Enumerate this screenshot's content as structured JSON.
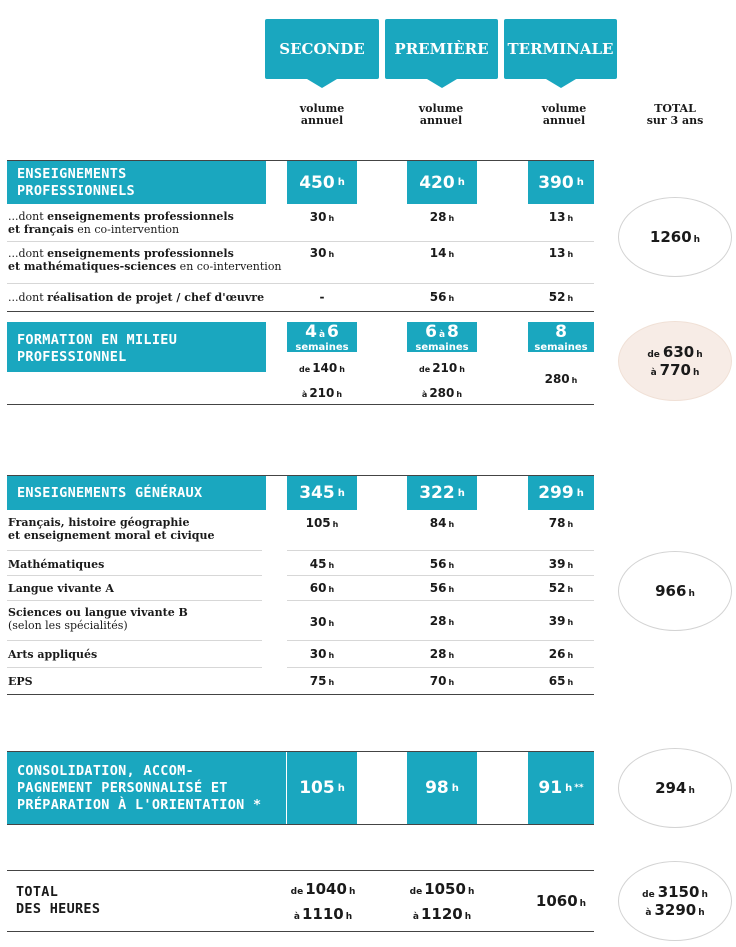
{
  "header": {
    "levels": [
      "SECONDE",
      "PREMIÈRE",
      "TERMINALE"
    ],
    "volume_label_1": "volume",
    "volume_label_2": "annuel",
    "total_label_1": "TOTAL",
    "total_label_2": "sur 3 ans"
  },
  "unit": "h",
  "pro": {
    "title_1": "ENSEIGNEMENTS",
    "title_2": "PROFESSIONNELS",
    "values": [
      "450",
      "420",
      "390"
    ],
    "rows": [
      {
        "pre": "...dont ",
        "bold": "enseignements professionnels",
        "line2_bold": "et français",
        "line2": " en co-intervention",
        "values": [
          "30",
          "28",
          "13"
        ]
      },
      {
        "pre": "...dont ",
        "bold": "enseignements professionnels",
        "line2_bold": "et mathématiques-sciences",
        "line2": " en co-intervention",
        "values": [
          "30",
          "14",
          "13"
        ]
      },
      {
        "pre": "...dont ",
        "bold": "réalisation de projet / chef d'œuvre",
        "values": [
          "-",
          "56",
          "52"
        ]
      }
    ],
    "total": "1260"
  },
  "fmp": {
    "title_1": "FORMATION EN MILIEU",
    "title_2": "PROFESSIONNEL",
    "weeks": [
      {
        "from": "4",
        "to": "6"
      },
      {
        "from": "6",
        "to": "8"
      },
      {
        "single": "8"
      }
    ],
    "a_word": "à",
    "weeks_label": "semaines",
    "de_word": "de",
    "hours": [
      {
        "from": "140",
        "to": "210"
      },
      {
        "from": "210",
        "to": "280"
      },
      {
        "single": "280"
      }
    ],
    "total_from": "630",
    "total_to": "770"
  },
  "gen": {
    "title": "ENSEIGNEMENTS GÉNÉRAUX",
    "values": [
      "345",
      "322",
      "299"
    ],
    "rows": [
      {
        "label_1": "Français, histoire géographie",
        "label_2": "et enseignement moral et civique",
        "values": [
          "105",
          "84",
          "78"
        ]
      },
      {
        "label_1": "Mathématiques",
        "values": [
          "45",
          "56",
          "39"
        ]
      },
      {
        "label_1": "Langue vivante A",
        "values": [
          "60",
          "56",
          "52"
        ]
      },
      {
        "label_1": "Sciences ou langue vivante B",
        "label_2_plain": "(selon les spécialités)",
        "values": [
          "30",
          "28",
          "39"
        ]
      },
      {
        "label_1": "Arts appliqués",
        "values": [
          "30",
          "28",
          "26"
        ]
      },
      {
        "label_1": "EPS",
        "values": [
          "75",
          "70",
          "65"
        ]
      }
    ],
    "total": "966"
  },
  "conso": {
    "title_1": "CONSOLIDATION, ACCOM-",
    "title_2": "PAGNEMENT PERSONNALISÉ ET",
    "title_3": "PRÉPARATION À L'ORIENTATION *",
    "values": [
      "105",
      "98",
      "91"
    ],
    "terminale_note": "**",
    "total": "294"
  },
  "totals": {
    "title_1": "TOTAL",
    "title_2": "DES HEURES",
    "seconde": {
      "from": "1040",
      "to": "1110"
    },
    "premiere": {
      "from": "1050",
      "to": "1120"
    },
    "terminale": "1060",
    "grand_from": "3150",
    "grand_to": "3290"
  },
  "colors": {
    "accent": "#1aa7bf",
    "fmp_total_bg": "#f7ece6"
  }
}
